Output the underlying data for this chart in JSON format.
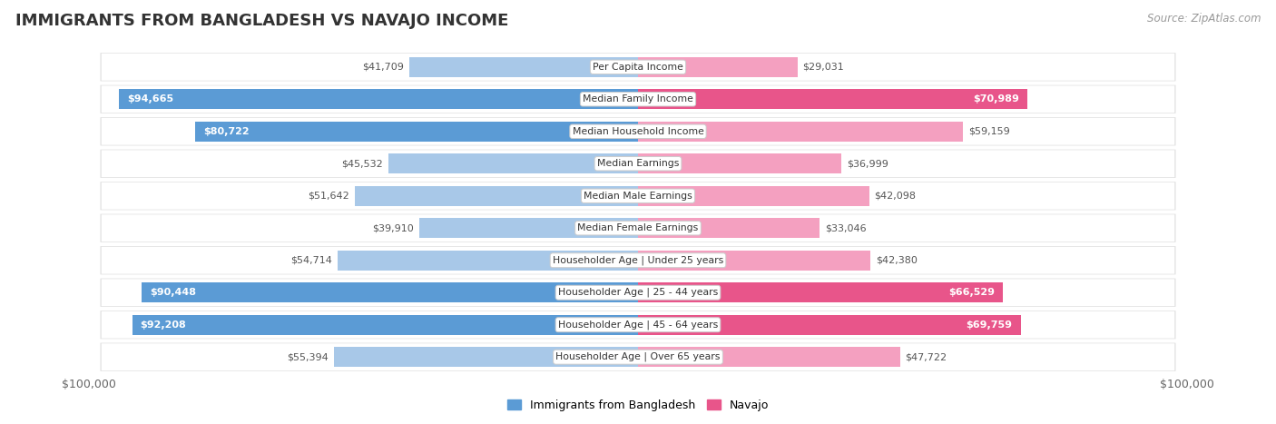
{
  "title": "IMMIGRANTS FROM BANGLADESH VS NAVAJO INCOME",
  "source": "Source: ZipAtlas.com",
  "categories": [
    "Per Capita Income",
    "Median Family Income",
    "Median Household Income",
    "Median Earnings",
    "Median Male Earnings",
    "Median Female Earnings",
    "Householder Age | Under 25 years",
    "Householder Age | 25 - 44 years",
    "Householder Age | 45 - 64 years",
    "Householder Age | Over 65 years"
  ],
  "bangladesh_values": [
    41709,
    94665,
    80722,
    45532,
    51642,
    39910,
    54714,
    90448,
    92208,
    55394
  ],
  "navajo_values": [
    29031,
    70989,
    59159,
    36999,
    42098,
    33046,
    42380,
    66529,
    69759,
    47722
  ],
  "bangladesh_labels": [
    "$41,709",
    "$94,665",
    "$80,722",
    "$45,532",
    "$51,642",
    "$39,910",
    "$54,714",
    "$90,448",
    "$92,208",
    "$55,394"
  ],
  "navajo_labels": [
    "$29,031",
    "$70,989",
    "$59,159",
    "$36,999",
    "$42,098",
    "$33,046",
    "$42,380",
    "$66,529",
    "$69,759",
    "$47,722"
  ],
  "max_value": 100000,
  "bangladesh_light_color": "#a8c8e8",
  "navajo_light_color": "#f4a0c0",
  "bangladesh_solid_color": "#5b9bd5",
  "navajo_solid_color": "#e8558a",
  "bd_solid_threshold": 0.78,
  "nv_solid_threshold": 0.62,
  "bar_height": 0.62,
  "row_bg_color": "#f0f0f0",
  "row_bg_inner": "#ffffff",
  "label_color_dark": "#555555",
  "label_color_white": "#ffffff",
  "title_fontsize": 13,
  "source_fontsize": 8.5,
  "label_fontsize": 8,
  "category_fontsize": 7.8,
  "legend_fontsize": 9,
  "axis_label": "$100,000"
}
